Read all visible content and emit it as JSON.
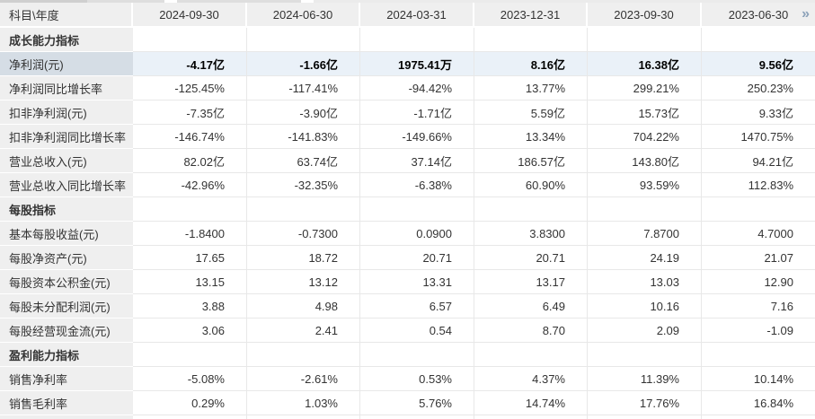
{
  "table": {
    "corner_header": "科目\\年度",
    "more_icon": "»",
    "date_columns": [
      "2024-09-30",
      "2024-06-30",
      "2024-03-31",
      "2023-12-31",
      "2023-09-30",
      "2023-06-30"
    ],
    "rows": [
      {
        "type": "section",
        "label": "成长能力指标",
        "values": [
          "",
          "",
          "",
          "",
          "",
          ""
        ]
      },
      {
        "type": "data",
        "highlight": true,
        "label": "净利润(元)",
        "values": [
          "-4.17亿",
          "-1.66亿",
          "1975.41万",
          "8.16亿",
          "16.38亿",
          "9.56亿"
        ]
      },
      {
        "type": "data",
        "label": "净利润同比增长率",
        "values": [
          "-125.45%",
          "-117.41%",
          "-94.42%",
          "13.77%",
          "299.21%",
          "250.23%"
        ]
      },
      {
        "type": "data",
        "label": "扣非净利润(元)",
        "values": [
          "-7.35亿",
          "-3.90亿",
          "-1.71亿",
          "5.59亿",
          "15.73亿",
          "9.33亿"
        ]
      },
      {
        "type": "data",
        "label": "扣非净利润同比增长率",
        "values": [
          "-146.74%",
          "-141.83%",
          "-149.66%",
          "13.34%",
          "704.22%",
          "1470.75%"
        ]
      },
      {
        "type": "data",
        "label": "营业总收入(元)",
        "values": [
          "82.02亿",
          "63.74亿",
          "37.14亿",
          "186.57亿",
          "143.80亿",
          "94.21亿"
        ]
      },
      {
        "type": "data",
        "label": "营业总收入同比增长率",
        "values": [
          "-42.96%",
          "-32.35%",
          "-6.38%",
          "60.90%",
          "93.59%",
          "112.83%"
        ]
      },
      {
        "type": "section",
        "label": "每股指标",
        "values": [
          "",
          "",
          "",
          "",
          "",
          ""
        ]
      },
      {
        "type": "data",
        "label": "基本每股收益(元)",
        "values": [
          "-1.8400",
          "-0.7300",
          "0.0900",
          "3.8300",
          "7.8700",
          "4.7000"
        ]
      },
      {
        "type": "data",
        "label": "每股净资产(元)",
        "values": [
          "17.65",
          "18.72",
          "20.71",
          "20.71",
          "24.19",
          "21.07"
        ]
      },
      {
        "type": "data",
        "label": "每股资本公积金(元)",
        "values": [
          "13.15",
          "13.12",
          "13.31",
          "13.17",
          "13.03",
          "12.90"
        ]
      },
      {
        "type": "data",
        "label": "每股未分配利润(元)",
        "values": [
          "3.88",
          "4.98",
          "6.57",
          "6.49",
          "10.16",
          "7.16"
        ]
      },
      {
        "type": "data",
        "label": "每股经营现金流(元)",
        "values": [
          "3.06",
          "2.41",
          "0.54",
          "8.70",
          "2.09",
          "-1.09"
        ]
      },
      {
        "type": "section",
        "label": "盈利能力指标",
        "values": [
          "",
          "",
          "",
          "",
          "",
          ""
        ]
      },
      {
        "type": "data",
        "label": "销售净利率",
        "values": [
          "-5.08%",
          "-2.61%",
          "0.53%",
          "4.37%",
          "11.39%",
          "10.14%"
        ]
      },
      {
        "type": "data",
        "label": "销售毛利率",
        "values": [
          "0.29%",
          "1.03%",
          "5.76%",
          "14.74%",
          "17.76%",
          "16.84%"
        ]
      }
    ]
  },
  "colors": {
    "header_bg": "#efefef",
    "label_column_bg": "#efefef",
    "highlight_label_bg": "#d5dde5",
    "highlight_row_bg": "#eaf1f8",
    "body_border": "#e8e8e8",
    "more_icon": "#8ca2b9",
    "text": "#333333"
  }
}
